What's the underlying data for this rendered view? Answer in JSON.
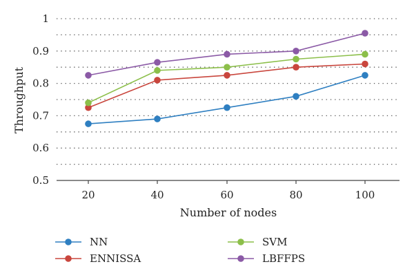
{
  "chart_data": {
    "type": "line",
    "title": "",
    "xlabel": "Number of nodes",
    "ylabel": "Throughput",
    "x": [
      20,
      40,
      60,
      80,
      100
    ],
    "ylim": [
      0.5,
      1.0
    ],
    "yticks": [
      "0.5",
      "0.6",
      "0.7",
      "0.8",
      "0.9",
      "1"
    ],
    "xticks": [
      "20",
      "40",
      "60",
      "80",
      "100"
    ],
    "grid": "horizontal dotted",
    "legend_position": "bottom",
    "series": [
      {
        "name": "NN",
        "color": "#2e7fc1",
        "values": [
          0.675,
          0.69,
          0.725,
          0.76,
          0.825
        ]
      },
      {
        "name": "ENNISSA",
        "color": "#c9463d",
        "values": [
          0.725,
          0.81,
          0.825,
          0.85,
          0.86
        ]
      },
      {
        "name": "SVM",
        "color": "#8cbf4a",
        "values": [
          0.74,
          0.84,
          0.85,
          0.875,
          0.89
        ]
      },
      {
        "name": "LBFFPS",
        "color": "#8b5aa6",
        "values": [
          0.825,
          0.865,
          0.89,
          0.9,
          0.955
        ]
      }
    ]
  }
}
